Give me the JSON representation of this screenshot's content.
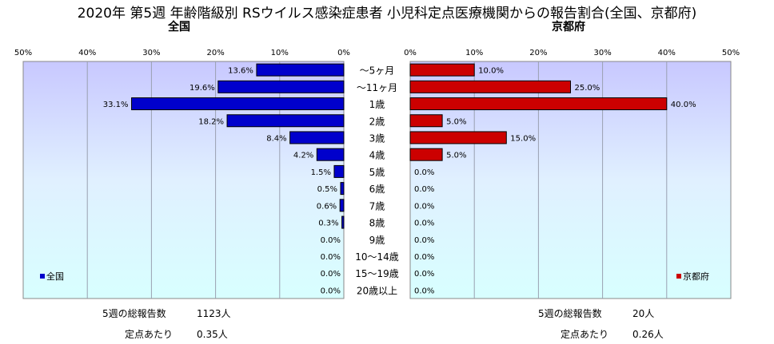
{
  "title": "2020年 第5週 年齢階級別 RSウイルス感染症患者 小児科定点医療機関からの報告割合(全国、京都府)",
  "panels": {
    "left": {
      "label": "全国",
      "legend": "全国",
      "color": "#0000CC"
    },
    "right": {
      "label": "京都府",
      "legend": "京都府",
      "color": "#CC0000"
    }
  },
  "axis_ticks": [
    "0%",
    "10%",
    "20%",
    "30%",
    "40%",
    "50%"
  ],
  "stats": {
    "national": {
      "total_label": "5週の総報告数",
      "total_value": "1123人",
      "per_label": "定点あたり",
      "per_value": "0.35人"
    },
    "kyoto": {
      "total_label": "5週の総報告数",
      "total_value": "20人",
      "per_label": "定点あたり",
      "per_value": "0.26人"
    }
  },
  "chart_data": {
    "type": "bar",
    "orientation": "horizontal",
    "title": "2020年 第5週 年齢階級別 RSウイルス感染症患者 小児科定点医療機関からの報告割合(全国、京都府)",
    "categories": [
      "～5ヶ月",
      "～11ヶ月",
      "1歳",
      "2歳",
      "3歳",
      "4歳",
      "5歳",
      "6歳",
      "7歳",
      "8歳",
      "9歳",
      "10～14歳",
      "15～19歳",
      "20歳以上"
    ],
    "xlim": [
      0,
      50
    ],
    "series": [
      {
        "name": "全国",
        "values": [
          13.6,
          19.6,
          33.1,
          18.2,
          8.4,
          4.2,
          1.5,
          0.5,
          0.6,
          0.3,
          0.0,
          0.0,
          0.0,
          0.0
        ],
        "labels": [
          "13.6%",
          "19.6%",
          "33.1%",
          "18.2%",
          "8.4%",
          "4.2%",
          "1.5%",
          "0.5%",
          "0.6%",
          "0.3%",
          "0.0%",
          "0.0%",
          "0.0%",
          "0.0%"
        ]
      },
      {
        "name": "京都府",
        "values": [
          10.0,
          25.0,
          40.0,
          5.0,
          15.0,
          5.0,
          0.0,
          0.0,
          0.0,
          0.0,
          0.0,
          0.0,
          0.0,
          0.0
        ],
        "labels": [
          "10.0%",
          "25.0%",
          "40.0%",
          "5.0%",
          "15.0%",
          "5.0%",
          "0.0%",
          "0.0%",
          "0.0%",
          "0.0%",
          "0.0%",
          "0.0%",
          "0.0%",
          "0.0%"
        ]
      }
    ],
    "grid": true,
    "legend": [
      "bottom-left",
      "bottom-right"
    ]
  }
}
